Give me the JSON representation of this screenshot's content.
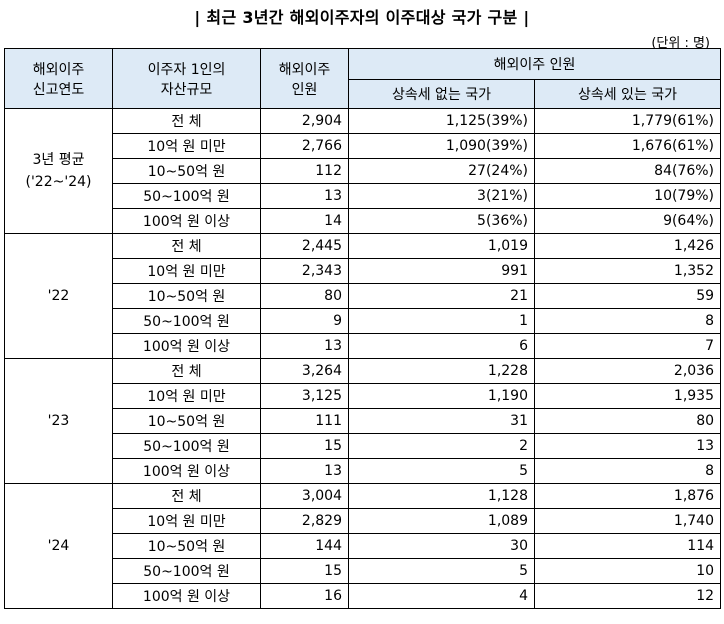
{
  "title": "| 최근 3년간 해외이주자의 이주대상 국가 구분 |",
  "unit": "(단위 : 명)",
  "headers": {
    "year": [
      "해외이주",
      "신고연도"
    ],
    "asset": [
      "이주자 1인의",
      "자산규모"
    ],
    "count": [
      "해외이주",
      "인원"
    ],
    "group": "해외이주 인원",
    "no_tax": "상속세 없는 국가",
    "with_tax": "상속세 있는 국가"
  },
  "groups": [
    {
      "year_lines": [
        "3년 평균",
        "('22~'24)"
      ],
      "rows": [
        {
          "size": "전 체",
          "total": "2,904",
          "no_tax": "1,125(39%)",
          "with_tax": "1,779(61%)"
        },
        {
          "size": "10억 원 미만",
          "total": "2,766",
          "no_tax": "1,090(39%)",
          "with_tax": "1,676(61%)"
        },
        {
          "size": "10~50억 원",
          "total": "112",
          "no_tax": "27(24%)",
          "with_tax": "84(76%)"
        },
        {
          "size": "50~100억 원",
          "total": "13",
          "no_tax": "3(21%)",
          "with_tax": "10(79%)"
        },
        {
          "size": "100억 원 이상",
          "total": "14",
          "no_tax": "5(36%)",
          "with_tax": "9(64%)"
        }
      ]
    },
    {
      "year_lines": [
        "'22"
      ],
      "rows": [
        {
          "size": "전 체",
          "total": "2,445",
          "no_tax": "1,019",
          "with_tax": "1,426"
        },
        {
          "size": "10억 원 미만",
          "total": "2,343",
          "no_tax": "991",
          "with_tax": "1,352"
        },
        {
          "size": "10~50억 원",
          "total": "80",
          "no_tax": "21",
          "with_tax": "59"
        },
        {
          "size": "50~100억 원",
          "total": "9",
          "no_tax": "1",
          "with_tax": "8"
        },
        {
          "size": "100억 원 이상",
          "total": "13",
          "no_tax": "6",
          "with_tax": "7"
        }
      ]
    },
    {
      "year_lines": [
        "'23"
      ],
      "rows": [
        {
          "size": "전 체",
          "total": "3,264",
          "no_tax": "1,228",
          "with_tax": "2,036"
        },
        {
          "size": "10억 원 미만",
          "total": "3,125",
          "no_tax": "1,190",
          "with_tax": "1,935"
        },
        {
          "size": "10~50억 원",
          "total": "111",
          "no_tax": "31",
          "with_tax": "80"
        },
        {
          "size": "50~100억 원",
          "total": "15",
          "no_tax": "2",
          "with_tax": "13"
        },
        {
          "size": "100억 원 이상",
          "total": "13",
          "no_tax": "5",
          "with_tax": "8"
        }
      ]
    },
    {
      "year_lines": [
        "'24"
      ],
      "rows": [
        {
          "size": "전 체",
          "total": "3,004",
          "no_tax": "1,128",
          "with_tax": "1,876"
        },
        {
          "size": "10억 원 미만",
          "total": "2,829",
          "no_tax": "1,089",
          "with_tax": "1,740"
        },
        {
          "size": "10~50억 원",
          "total": "144",
          "no_tax": "30",
          "with_tax": "114"
        },
        {
          "size": "50~100억 원",
          "total": "15",
          "no_tax": "5",
          "with_tax": "10"
        },
        {
          "size": "100억 원 이상",
          "total": "16",
          "no_tax": "4",
          "with_tax": "12"
        }
      ]
    }
  ]
}
